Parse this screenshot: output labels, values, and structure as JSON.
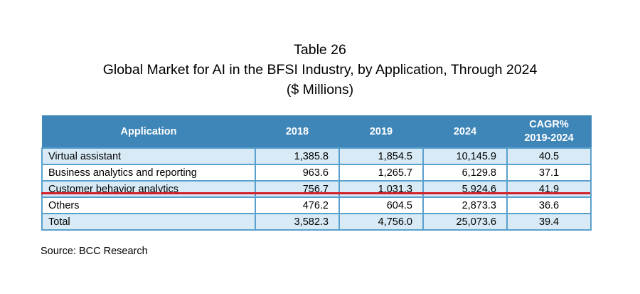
{
  "title": {
    "line1": "Table 26",
    "line2": "Global Market for AI in the BFSI Industry, by Application, Through 2024",
    "line3": "($ Millions)"
  },
  "chart_data": {
    "type": "table",
    "columns": [
      "Application",
      "2018",
      "2019",
      "2024",
      "CAGR%",
      "2019-2024"
    ],
    "rows": [
      {
        "application": "Virtual assistant",
        "y2018": "1,385.8",
        "y2019": "1,854.5",
        "y2024": "10,145.9",
        "cagr": "40.5"
      },
      {
        "application": "Business analytics and reporting",
        "y2018": "963.6",
        "y2019": "1,265.7",
        "y2024": "6,129.8",
        "cagr": "37.1"
      },
      {
        "application": "Customer behavior analytics",
        "y2018": "756.7",
        "y2019": "1,031.3",
        "y2024": "5,924.6",
        "cagr": "41.9"
      },
      {
        "application": "Others",
        "y2018": "476.2",
        "y2019": "604.5",
        "y2024": "2,873.3",
        "cagr": "36.6"
      },
      {
        "application": "Total",
        "y2018": "3,582.3",
        "y2019": "4,756.0",
        "y2024": "25,073.6",
        "cagr": "39.4"
      }
    ]
  },
  "source": "Source: BCC Research",
  "colors": {
    "header_bg": "#3f86b8",
    "row_alt_bg": "#d7eaf6",
    "border": "#5aa0cd",
    "highlight_line": "#d4202a"
  }
}
